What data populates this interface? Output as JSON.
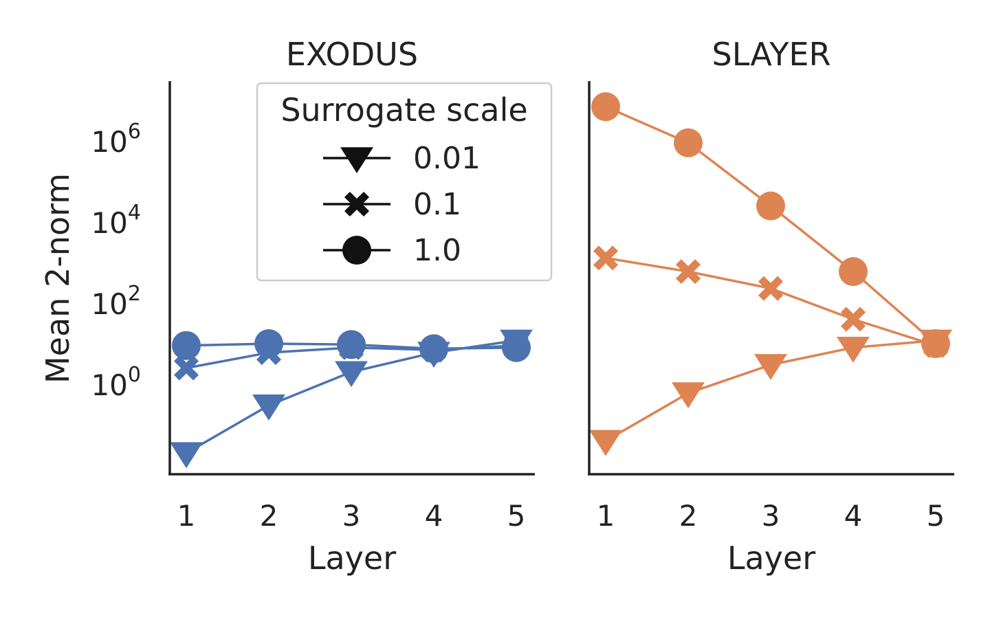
{
  "chart_data": [
    {
      "type": "line",
      "title": "EXODUS",
      "xlabel": "Layer",
      "ylabel": "Mean 2-norm",
      "x": [
        1,
        2,
        3,
        4,
        5
      ],
      "yscale": "log",
      "ylim": [
        0.006,
        30000000
      ],
      "yticks": [
        "10",
        "10",
        "10",
        "10"
      ],
      "ytick_exponents": [
        "0",
        "2",
        "4",
        "6"
      ],
      "ytick_values": [
        1,
        100,
        10000,
        1000000
      ],
      "xticks": [
        "1",
        "2",
        "3",
        "4",
        "5"
      ],
      "color": "#4c72b0",
      "grid": false,
      "series": [
        {
          "name": "0.01",
          "marker": "triangle-down",
          "values": [
            0.02,
            0.3,
            2,
            6,
            12
          ]
        },
        {
          "name": "0.1",
          "marker": "x",
          "values": [
            2.5,
            6,
            8,
            7,
            9
          ]
        },
        {
          "name": "1.0",
          "marker": "circle",
          "values": [
            9,
            10,
            9.5,
            7.5,
            8
          ]
        }
      ],
      "legend": {
        "title": "Surrogate scale",
        "placement": "top-right",
        "items": [
          {
            "label": "0.01",
            "marker": "triangle-down"
          },
          {
            "label": "0.1",
            "marker": "x"
          },
          {
            "label": "1.0",
            "marker": "circle"
          }
        ]
      }
    },
    {
      "type": "line",
      "title": "SLAYER",
      "xlabel": "Layer",
      "x": [
        1,
        2,
        3,
        4,
        5
      ],
      "yscale": "log",
      "ylim": [
        0.006,
        30000000
      ],
      "xticks": [
        "1",
        "2",
        "3",
        "4",
        "5"
      ],
      "color": "#dd8452",
      "grid": false,
      "series": [
        {
          "name": "0.01",
          "marker": "triangle-down",
          "values": [
            0.04,
            0.6,
            3,
            8,
            12
          ]
        },
        {
          "name": "0.1",
          "marker": "x",
          "values": [
            1300,
            600,
            230,
            40,
            9
          ]
        },
        {
          "name": "1.0",
          "marker": "circle",
          "values": [
            7000000,
            900000,
            25000,
            600,
            10
          ]
        }
      ]
    }
  ]
}
